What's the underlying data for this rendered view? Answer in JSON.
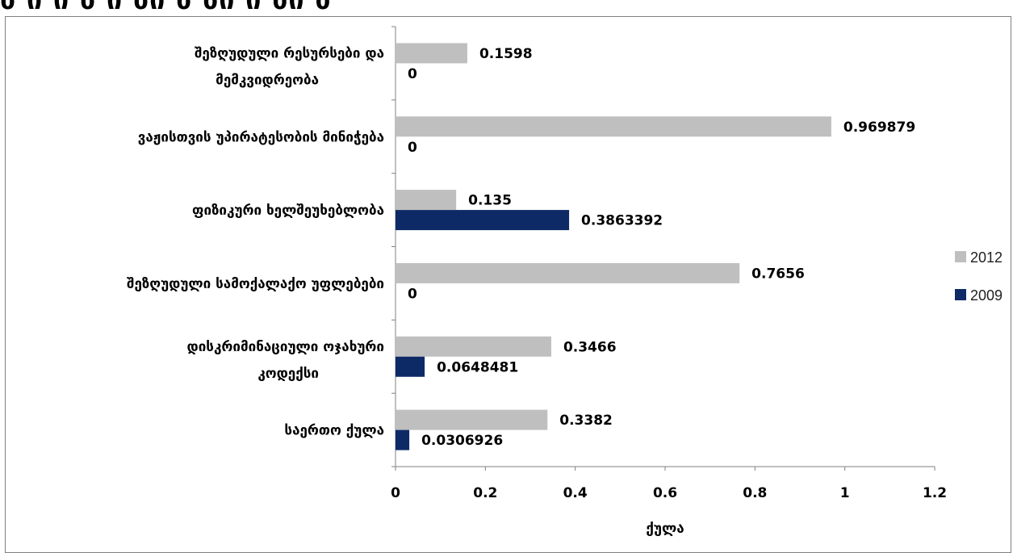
{
  "header_strip": "ბ ი ი ბ ი ბი ბ ბი ი ბი ბ",
  "chart_data": {
    "type": "bar",
    "orientation": "horizontal",
    "categories": [
      [
        "საერთო ქულა"
      ],
      [
        "დისკრიმინაციული ოჯახური",
        "კოდექსი"
      ],
      [
        "შეზღუდული სამოქალაქო უფლებები"
      ],
      [
        "ფიზიკური ხელშეუხებლობა"
      ],
      [
        "ვაჟისთვის უპირატესობის მინიჭება"
      ],
      [
        "შეზღუდული რესურსები და",
        "მემკვიდრეობა"
      ]
    ],
    "series": [
      {
        "name": "2012",
        "color": "#bfbfbf",
        "values": [
          0.3382,
          0.3466,
          0.7656,
          0.135,
          0.969879,
          0.1598
        ]
      },
      {
        "name": "2009",
        "color": "#0d2a66",
        "values": [
          0.0306926,
          0.0648481,
          0,
          0.3863392,
          0,
          0
        ]
      }
    ],
    "data_labels": [
      [
        "0.3382",
        "0.3466",
        "0.7656",
        "0.135",
        "0.969879",
        "0.1598"
      ],
      [
        "0.0306926",
        "0.0648481",
        "0",
        "0.3863392",
        "0",
        "0"
      ]
    ],
    "x_ticks": [
      "0",
      "0.2",
      "0.4",
      "0.6",
      "0.8",
      "1",
      "1.2"
    ],
    "xlim": [
      0,
      1.2
    ],
    "xlabel": "ქულა",
    "grid": false,
    "legend_position": "right"
  }
}
